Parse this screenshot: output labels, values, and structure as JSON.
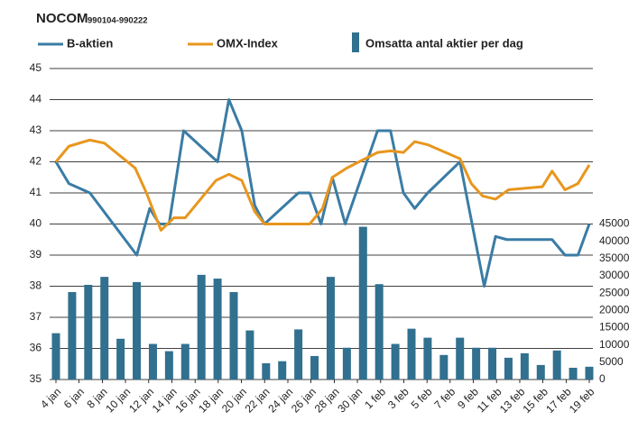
{
  "chart_data": {
    "type": "combo",
    "title": "NOCOM",
    "subtitle": "990104-990222",
    "x": [
      0,
      1,
      2,
      3,
      4,
      5,
      6,
      7,
      8,
      9,
      10,
      11,
      12,
      13,
      14,
      15,
      16,
      17,
      18,
      19,
      20,
      21,
      22,
      23,
      24,
      25,
      26,
      27,
      28,
      29,
      30,
      31,
      32,
      33
    ],
    "xlim": [
      0,
      33
    ],
    "xticks": [
      {
        "value": 0,
        "label": "4 jan"
      },
      {
        "value": 1.43,
        "label": "6 jan"
      },
      {
        "value": 2.87,
        "label": "8 jan"
      },
      {
        "value": 4.3,
        "label": "10 jan"
      },
      {
        "value": 5.74,
        "label": "12 jan"
      },
      {
        "value": 7.17,
        "label": "14 jan"
      },
      {
        "value": 8.61,
        "label": "16 jan"
      },
      {
        "value": 10.04,
        "label": "18 jan"
      },
      {
        "value": 11.48,
        "label": "20 jan"
      },
      {
        "value": 12.91,
        "label": "22 jan"
      },
      {
        "value": 14.35,
        "label": "24 jan"
      },
      {
        "value": 15.78,
        "label": "26 jan"
      },
      {
        "value": 17.22,
        "label": "28 jan"
      },
      {
        "value": 18.65,
        "label": "30 jan"
      },
      {
        "value": 20.09,
        "label": "1 feb"
      },
      {
        "value": 21.52,
        "label": "3 feb"
      },
      {
        "value": 22.96,
        "label": "5 feb"
      },
      {
        "value": 24.39,
        "label": "7 feb"
      },
      {
        "value": 25.83,
        "label": "9 feb"
      },
      {
        "value": 27.26,
        "label": "11 feb"
      },
      {
        "value": 28.7,
        "label": "13 feb"
      },
      {
        "value": 30.13,
        "label": "15 feb"
      },
      {
        "value": 31.57,
        "label": "17 feb"
      },
      {
        "value": 33,
        "label": "19 feb"
      }
    ],
    "ylim": [
      35,
      45
    ],
    "yticks": [
      35,
      36,
      37,
      38,
      39,
      40,
      41,
      42,
      43,
      44,
      45
    ],
    "y2lim": [
      0,
      90000
    ],
    "y2ticks": [
      0,
      5000,
      10000,
      15000,
      20000,
      25000,
      30000,
      35000,
      40000,
      45000
    ],
    "grid": true,
    "series": [
      {
        "name": "B-aktien",
        "type": "line",
        "color": "#3a7ca5",
        "x": [
          0,
          0.8,
          2.1,
          5.0,
          5.8,
          6.4,
          7.0,
          7.9,
          10.0,
          10.7,
          11.5,
          12.3,
          12.9,
          15.0,
          15.7,
          16.4,
          17.1,
          17.9,
          19.9,
          20.7,
          21.5,
          22.2,
          23.0,
          25.0,
          26.5,
          27.2,
          27.9,
          30.7,
          31.5,
          32.3,
          33.0
        ],
        "values": [
          42.0,
          41.3,
          41.0,
          39.0,
          40.5,
          40.0,
          40.0,
          43.0,
          42.0,
          44.0,
          43.0,
          40.6,
          40.0,
          41.0,
          41.0,
          40.0,
          41.5,
          40.0,
          43.0,
          43.0,
          41.0,
          40.5,
          41.0,
          42.0,
          38.0,
          39.6,
          39.5,
          39.5,
          39.0,
          39.0,
          40.0
        ]
      },
      {
        "name": "OMX-Index",
        "type": "line",
        "color": "#e8961e",
        "x": [
          0,
          0.8,
          2.1,
          3.0,
          4.9,
          5.6,
          6.5,
          7.3,
          8.0,
          9.9,
          10.7,
          11.5,
          12.3,
          12.9,
          15.0,
          15.7,
          16.5,
          17.1,
          18.0,
          19.9,
          20.7,
          21.5,
          22.2,
          23.0,
          25.0,
          25.7,
          26.4,
          27.2,
          28.0,
          30.1,
          30.7,
          31.5,
          32.3,
          33.0
        ],
        "values": [
          42.0,
          42.5,
          42.7,
          42.6,
          41.8,
          41.0,
          39.8,
          40.2,
          40.2,
          41.4,
          41.6,
          41.4,
          40.4,
          40.0,
          40.0,
          40.0,
          40.5,
          41.5,
          41.8,
          42.3,
          42.35,
          42.3,
          42.65,
          42.55,
          42.1,
          41.3,
          40.9,
          40.8,
          41.1,
          41.2,
          41.7,
          41.1,
          41.3,
          41.9
        ]
      },
      {
        "name": "Omsatta antal aktier per dag",
        "type": "bar",
        "axis": "y2",
        "color": "#31708f",
        "values": [
          13400,
          25300,
          27400,
          29700,
          11800,
          28200,
          10300,
          8200,
          10300,
          30300,
          29200,
          25300,
          14200,
          4700,
          5300,
          14500,
          6800,
          29700,
          9200,
          44200,
          27600,
          10300,
          14700,
          12100,
          7100,
          12100,
          9200,
          9200,
          6300,
          7600,
          4200,
          8400,
          3400,
          3700
        ]
      }
    ]
  }
}
